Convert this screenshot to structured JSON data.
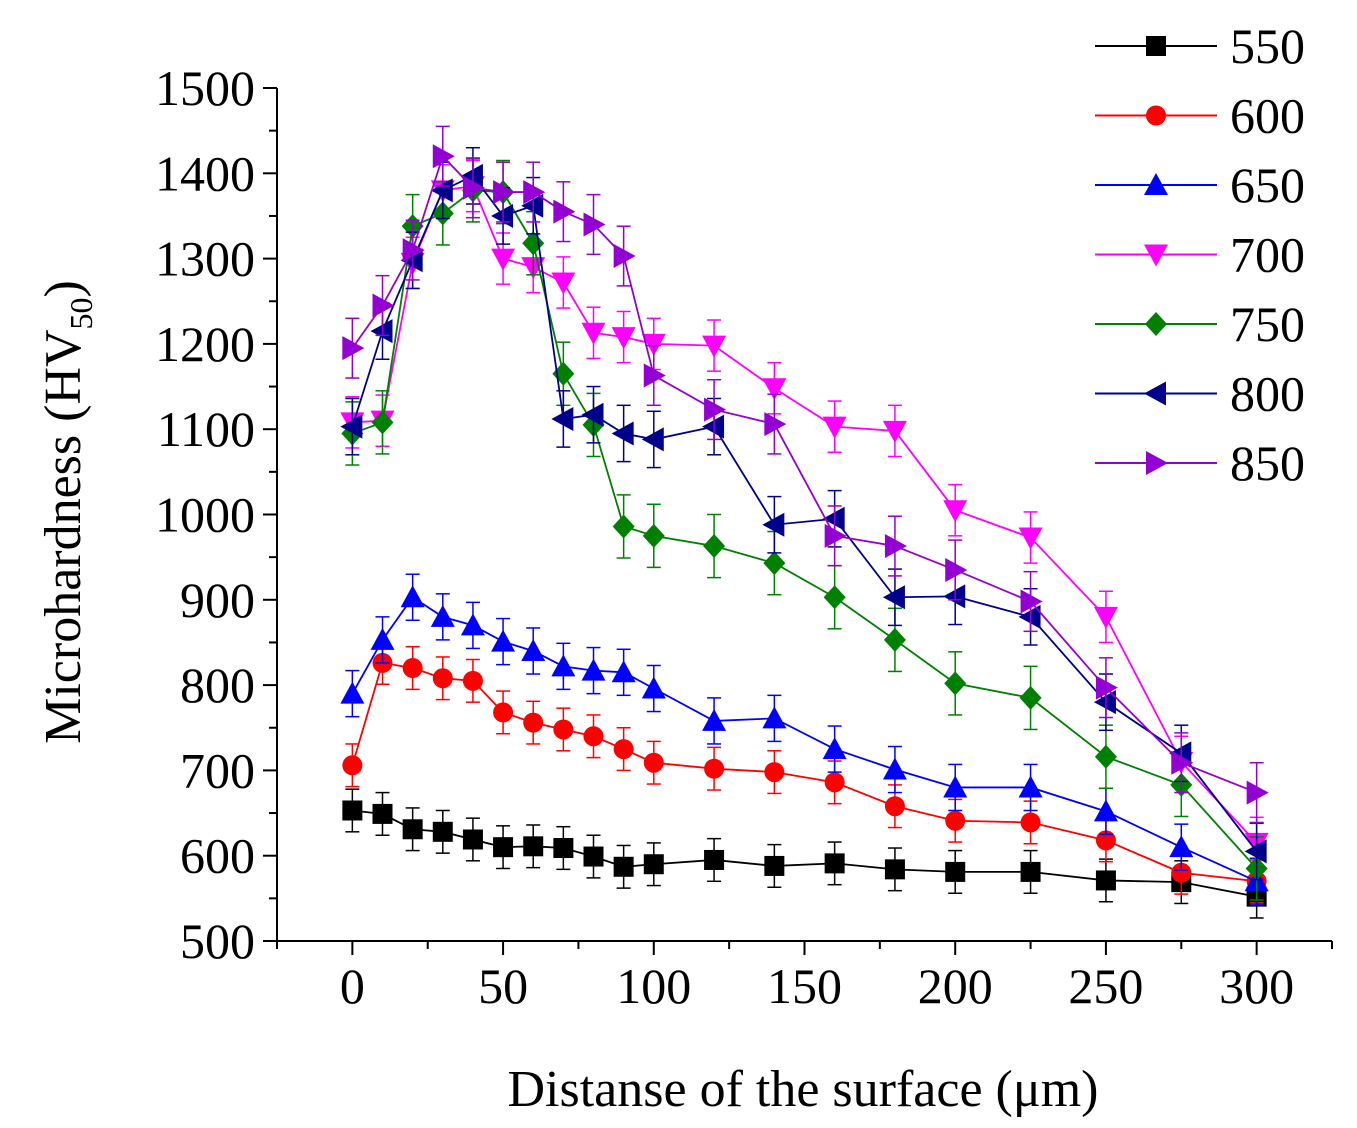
{
  "chart_data": {
    "type": "line",
    "title": "",
    "xlabel": "Distanse of the surface (μm)",
    "ylabel": {
      "main": "Microhardness (HV",
      "sub": "50",
      "close": ")"
    },
    "xlim": [
      -25,
      325
    ],
    "ylim": [
      500,
      1500
    ],
    "xticks": [
      0,
      50,
      100,
      150,
      200,
      250,
      300
    ],
    "yticks": [
      500,
      600,
      700,
      800,
      900,
      1000,
      1100,
      1200,
      1300,
      1400,
      1500
    ],
    "grid": false,
    "legend": "top-right",
    "x": [
      0,
      10,
      20,
      30,
      40,
      50,
      60,
      70,
      80,
      90,
      100,
      120,
      140,
      160,
      180,
      200,
      225,
      250,
      275,
      300
    ],
    "series": [
      {
        "name": "550",
        "color": "#000000",
        "marker": "square",
        "values": [
          653,
          649,
          631,
          628,
          619,
          610,
          611,
          609,
          599,
          587,
          590,
          595,
          588,
          591,
          584,
          581,
          581,
          571,
          569,
          552
        ],
        "errors": [
          25,
          25,
          25,
          25,
          25,
          25,
          25,
          25,
          25,
          25,
          25,
          25,
          25,
          25,
          25,
          25,
          25,
          25,
          25,
          25
        ]
      },
      {
        "name": "600",
        "color": "#ff0000",
        "marker": "circle",
        "values": [
          706,
          826,
          820,
          808,
          805,
          768,
          756,
          748,
          740,
          725,
          709,
          702,
          698,
          686,
          658,
          641,
          639,
          618,
          580,
          570
        ],
        "errors": [
          25,
          25,
          25,
          25,
          25,
          25,
          25,
          25,
          25,
          25,
          25,
          25,
          25,
          25,
          25,
          25,
          25,
          25,
          25,
          25
        ]
      },
      {
        "name": "650",
        "color": "#0000ff",
        "marker": "triangle-up",
        "values": [
          790,
          853,
          903,
          880,
          870,
          851,
          840,
          822,
          817,
          815,
          796,
          758,
          761,
          725,
          701,
          680,
          680,
          652,
          610,
          570
        ],
        "errors": [
          27,
          27,
          27,
          27,
          27,
          27,
          27,
          27,
          27,
          27,
          27,
          27,
          27,
          27,
          27,
          27,
          27,
          27,
          27,
          27
        ]
      },
      {
        "name": "700",
        "color": "#ff00ff",
        "marker": "triangle-down",
        "values": [
          1108,
          1110,
          1295,
          1380,
          1385,
          1300,
          1290,
          1272,
          1213,
          1208,
          1200,
          1198,
          1148,
          1103,
          1098,
          1005,
          973,
          880,
          710,
          615
        ],
        "errors": [
          30,
          30,
          30,
          30,
          30,
          30,
          30,
          30,
          30,
          30,
          30,
          30,
          30,
          30,
          30,
          30,
          30,
          30,
          30,
          30
        ]
      },
      {
        "name": "750",
        "color": "#008000",
        "marker": "diamond",
        "values": [
          1095,
          1108,
          1338,
          1353,
          1380,
          1378,
          1318,
          1165,
          1105,
          986,
          975,
          963,
          943,
          903,
          853,
          802,
          785,
          716,
          683,
          585
        ],
        "errors": [
          37,
          37,
          37,
          37,
          37,
          37,
          37,
          37,
          37,
          37,
          37,
          37,
          37,
          37,
          37,
          37,
          37,
          37,
          37,
          37
        ]
      },
      {
        "name": "800",
        "color": "#00008b",
        "marker": "triangle-left",
        "values": [
          1103,
          1215,
          1298,
          1380,
          1397,
          1350,
          1362,
          1112,
          1117,
          1095,
          1088,
          1103,
          988,
          995,
          903,
          904,
          880,
          780,
          720,
          605
        ],
        "errors": [
          33,
          33,
          33,
          33,
          33,
          33,
          33,
          33,
          33,
          33,
          33,
          33,
          33,
          33,
          33,
          33,
          33,
          33,
          33,
          33
        ]
      },
      {
        "name": "850",
        "color": "#9400d3",
        "marker": "triangle-right",
        "values": [
          1195,
          1245,
          1310,
          1420,
          1383,
          1378,
          1378,
          1355,
          1340,
          1303,
          1163,
          1123,
          1106,
          975,
          963,
          935,
          898,
          797,
          709,
          674
        ],
        "errors": [
          35,
          35,
          35,
          35,
          35,
          35,
          35,
          35,
          35,
          35,
          35,
          35,
          35,
          35,
          35,
          35,
          35,
          35,
          35,
          35
        ]
      }
    ]
  }
}
